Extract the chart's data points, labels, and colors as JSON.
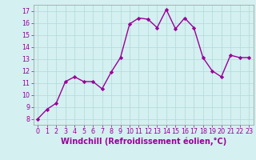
{
  "x": [
    0,
    1,
    2,
    3,
    4,
    5,
    6,
    7,
    8,
    9,
    10,
    11,
    12,
    13,
    14,
    15,
    16,
    17,
    18,
    19,
    20,
    21,
    22,
    23
  ],
  "y": [
    8.0,
    8.8,
    9.3,
    11.1,
    11.5,
    11.1,
    11.1,
    10.5,
    11.9,
    13.1,
    15.9,
    16.4,
    16.3,
    15.6,
    17.1,
    15.5,
    16.4,
    15.6,
    13.1,
    12.0,
    11.5,
    13.3,
    13.1,
    13.1
  ],
  "line_color": "#990099",
  "marker": "D",
  "marker_size": 2.2,
  "line_width": 1.0,
  "xlabel": "Windchill (Refroidissement éolien,°C)",
  "xlim": [
    -0.5,
    23.5
  ],
  "ylim": [
    7.5,
    17.5
  ],
  "yticks": [
    8,
    9,
    10,
    11,
    12,
    13,
    14,
    15,
    16,
    17
  ],
  "xticks": [
    0,
    1,
    2,
    3,
    4,
    5,
    6,
    7,
    8,
    9,
    10,
    11,
    12,
    13,
    14,
    15,
    16,
    17,
    18,
    19,
    20,
    21,
    22,
    23
  ],
  "bg_color": "#d4f0f0",
  "grid_color": "#b0d8d8",
  "xlabel_fontsize": 7.0,
  "tick_fontsize": 5.8,
  "text_color": "#990099",
  "spine_color": "#999999"
}
